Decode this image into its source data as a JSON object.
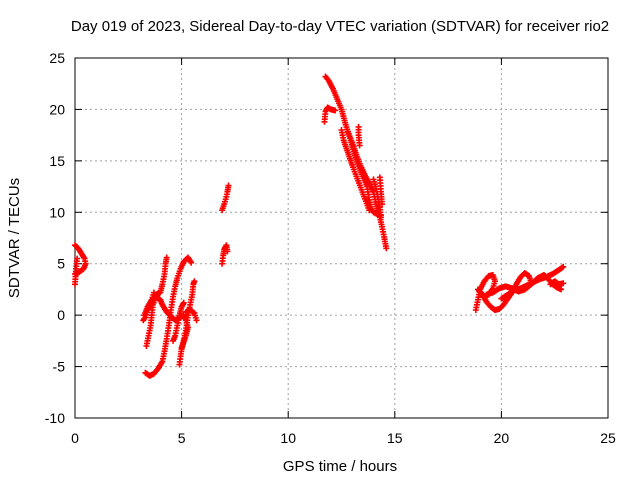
{
  "chart_data": {
    "type": "scatter",
    "title": "Day 019 of 2023, Sidereal Day-to-day VTEC variation (SDTVAR) for receiver rio2",
    "xlabel": "GPS time / hours",
    "ylabel": "SDTVAR / TECUs",
    "xlim": [
      0,
      25
    ],
    "ylim": [
      -10,
      25
    ],
    "x_ticks": [
      0,
      5,
      10,
      15,
      20,
      25
    ],
    "y_ticks": [
      -10,
      -5,
      0,
      5,
      10,
      15,
      20,
      25
    ],
    "x_tick_labels": [
      "0",
      "5",
      "10",
      "15",
      "20",
      "25"
    ],
    "y_tick_labels": [
      "-10",
      "-5",
      "0",
      "5",
      "10",
      "15",
      "20",
      "25"
    ],
    "grid": true,
    "marker": "plus",
    "color": "#ff0000",
    "segments": [
      [
        [
          0.0,
          6.8
        ],
        [
          0.15,
          6.5
        ],
        [
          0.3,
          6.0
        ],
        [
          0.45,
          5.5
        ],
        [
          0.5,
          5.0
        ],
        [
          0.4,
          4.5
        ],
        [
          0.2,
          4.2
        ],
        [
          0.0,
          4.0
        ]
      ],
      [
        [
          0.0,
          3.0
        ],
        [
          0.05,
          4.5
        ],
        [
          0.1,
          5.5
        ]
      ],
      [
        [
          3.3,
          -5.6
        ],
        [
          3.5,
          -5.9
        ],
        [
          3.7,
          -5.7
        ],
        [
          3.9,
          -5.2
        ],
        [
          4.1,
          -4.5
        ],
        [
          4.2,
          -3.5
        ],
        [
          4.3,
          -2.3
        ],
        [
          4.4,
          -1.0
        ],
        [
          4.5,
          0.5
        ],
        [
          4.6,
          1.8
        ],
        [
          4.7,
          2.8
        ],
        [
          4.8,
          3.6
        ],
        [
          4.95,
          4.5
        ],
        [
          5.1,
          5.2
        ],
        [
          5.3,
          5.6
        ],
        [
          5.45,
          5.1
        ]
      ],
      [
        [
          3.35,
          -3.0
        ],
        [
          3.45,
          -2.0
        ],
        [
          3.55,
          -1.0
        ],
        [
          3.6,
          0.0
        ],
        [
          3.65,
          1.0
        ],
        [
          3.8,
          1.8
        ],
        [
          4.0,
          1.5
        ],
        [
          4.1,
          1.0
        ],
        [
          4.3,
          0.3
        ],
        [
          4.5,
          -0.1
        ],
        [
          4.7,
          -0.5
        ],
        [
          4.9,
          -0.2
        ],
        [
          5.1,
          0.0
        ],
        [
          5.2,
          -0.5
        ],
        [
          5.3,
          -1.2
        ],
        [
          5.2,
          -2.0
        ],
        [
          5.1,
          -2.6
        ],
        [
          5.0,
          -3.2
        ]
      ],
      [
        [
          3.25,
          0.0
        ],
        [
          3.4,
          0.8
        ],
        [
          3.6,
          1.5
        ],
        [
          3.8,
          2.0
        ],
        [
          4.0,
          2.2
        ],
        [
          4.1,
          3.0
        ],
        [
          4.2,
          4.0
        ],
        [
          4.25,
          5.0
        ],
        [
          4.3,
          5.6
        ]
      ],
      [
        [
          3.2,
          -0.5
        ],
        [
          3.3,
          -0.2
        ],
        [
          3.4,
          0.5
        ],
        [
          3.55,
          1.0
        ],
        [
          3.7,
          2.2
        ]
      ],
      [
        [
          4.6,
          -2.5
        ],
        [
          4.7,
          -2.0
        ],
        [
          4.8,
          -1.0
        ],
        [
          4.9,
          0.0
        ],
        [
          5.0,
          0.8
        ],
        [
          5.1,
          1.2
        ]
      ],
      [
        [
          4.9,
          -4.8
        ],
        [
          4.95,
          -4.0
        ],
        [
          5.0,
          -3.3
        ],
        [
          5.1,
          -2.5
        ],
        [
          5.2,
          -1.5
        ],
        [
          5.3,
          0.0
        ],
        [
          5.4,
          1.0
        ],
        [
          5.5,
          2.0
        ],
        [
          5.55,
          3.0
        ],
        [
          5.6,
          3.3
        ]
      ],
      [
        [
          5.2,
          0.3
        ],
        [
          5.4,
          0.5
        ],
        [
          5.6,
          0.2
        ],
        [
          5.7,
          -0.5
        ]
      ],
      [
        [
          6.9,
          5.0
        ],
        [
          6.95,
          5.8
        ],
        [
          7.0,
          6.4
        ],
        [
          7.1,
          6.8
        ],
        [
          7.15,
          6.2
        ]
      ],
      [
        [
          6.9,
          10.2
        ],
        [
          7.0,
          10.8
        ],
        [
          7.1,
          11.5
        ],
        [
          7.15,
          12.0
        ],
        [
          7.2,
          12.6
        ]
      ],
      [
        [
          11.7,
          18.8
        ],
        [
          11.75,
          19.8
        ],
        [
          11.85,
          20.2
        ],
        [
          12.0,
          20.0
        ],
        [
          12.2,
          19.9
        ]
      ],
      [
        [
          11.75,
          23.2
        ],
        [
          11.9,
          22.8
        ],
        [
          12.1,
          22.0
        ],
        [
          12.3,
          21.0
        ],
        [
          12.5,
          20.0
        ],
        [
          12.7,
          18.5
        ],
        [
          12.9,
          17.2
        ],
        [
          13.1,
          15.7
        ],
        [
          13.3,
          14.5
        ],
        [
          13.5,
          13.5
        ],
        [
          13.7,
          12.5
        ],
        [
          13.8,
          11.2
        ],
        [
          13.9,
          10.3
        ],
        [
          14.0,
          10.0
        ],
        [
          14.2,
          9.8
        ],
        [
          14.35,
          9.7
        ]
      ],
      [
        [
          12.5,
          18.0
        ],
        [
          12.6,
          17.0
        ],
        [
          12.8,
          15.8
        ],
        [
          13.0,
          14.6
        ],
        [
          13.2,
          13.5
        ],
        [
          13.4,
          12.4
        ],
        [
          13.6,
          11.3
        ],
        [
          13.8,
          10.2
        ]
      ],
      [
        [
          12.8,
          17.8
        ],
        [
          13.0,
          16.8
        ],
        [
          13.2,
          15.6
        ],
        [
          13.4,
          14.5
        ],
        [
          13.6,
          13.6
        ],
        [
          13.8,
          12.8
        ],
        [
          14.0,
          12.0
        ],
        [
          14.1,
          11.0
        ],
        [
          14.2,
          10.2
        ],
        [
          14.3,
          9.5
        ],
        [
          14.4,
          8.6
        ],
        [
          14.5,
          7.6
        ],
        [
          14.6,
          6.5
        ]
      ],
      [
        [
          13.3,
          18.3
        ],
        [
          13.3,
          17.5
        ],
        [
          13.35,
          16.5
        ]
      ],
      [
        [
          14.0,
          13.2
        ],
        [
          14.1,
          12.5
        ],
        [
          14.2,
          11.5
        ],
        [
          14.3,
          10.5
        ],
        [
          14.35,
          9.5
        ]
      ],
      [
        [
          14.3,
          13.4
        ],
        [
          14.35,
          12.0
        ],
        [
          14.4,
          10.8
        ]
      ],
      [
        [
          18.8,
          0.5
        ],
        [
          18.9,
          1.5
        ],
        [
          19.0,
          2.5
        ],
        [
          19.2,
          3.3
        ],
        [
          19.4,
          3.8
        ],
        [
          19.6,
          3.9
        ],
        [
          19.7,
          3.3
        ],
        [
          19.6,
          2.6
        ],
        [
          19.4,
          2.0
        ],
        [
          19.2,
          1.8
        ],
        [
          19.05,
          2.2
        ]
      ],
      [
        [
          18.9,
          2.5
        ],
        [
          19.1,
          2.0
        ],
        [
          19.3,
          1.3
        ],
        [
          19.5,
          0.8
        ],
        [
          19.7,
          0.5
        ],
        [
          19.9,
          0.6
        ],
        [
          20.1,
          1.0
        ],
        [
          20.3,
          1.6
        ],
        [
          20.5,
          2.2
        ],
        [
          20.7,
          3.0
        ],
        [
          20.9,
          3.7
        ],
        [
          21.1,
          4.1
        ],
        [
          21.3,
          3.8
        ],
        [
          21.4,
          3.2
        ]
      ],
      [
        [
          19.3,
          2.0
        ],
        [
          19.6,
          2.2
        ],
        [
          19.9,
          2.6
        ],
        [
          20.2,
          2.8
        ],
        [
          20.5,
          2.6
        ],
        [
          20.8,
          2.3
        ],
        [
          21.1,
          2.5
        ],
        [
          21.4,
          3.0
        ],
        [
          21.7,
          3.6
        ],
        [
          22.0,
          3.9
        ],
        [
          22.2,
          3.5
        ],
        [
          22.4,
          3.0
        ],
        [
          22.6,
          2.7
        ],
        [
          22.8,
          2.5
        ]
      ],
      [
        [
          20.0,
          1.6
        ],
        [
          20.3,
          2.0
        ],
        [
          20.6,
          2.4
        ],
        [
          20.9,
          2.6
        ],
        [
          21.2,
          2.9
        ],
        [
          21.5,
          3.2
        ],
        [
          21.8,
          3.5
        ],
        [
          22.1,
          3.7
        ],
        [
          22.4,
          4.0
        ],
        [
          22.7,
          4.4
        ],
        [
          22.9,
          4.7
        ]
      ],
      [
        [
          22.3,
          3.0
        ],
        [
          22.5,
          3.3
        ],
        [
          22.7,
          3.0
        ],
        [
          22.9,
          3.1
        ]
      ]
    ]
  }
}
